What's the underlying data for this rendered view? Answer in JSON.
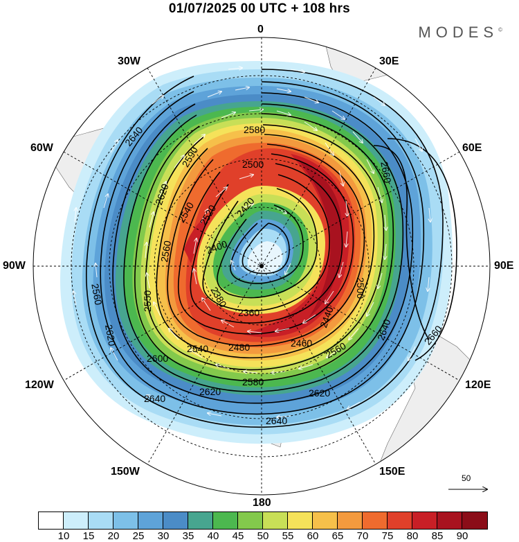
{
  "title": "01/07/2025  00 UTC  + 108 hrs",
  "brand": "MODES",
  "brand_mark": "©",
  "lon_labels": {
    "n0": "0",
    "e30": "30E",
    "e60": "60E",
    "e90": "90E",
    "e120": "120E",
    "e150": "150E",
    "s180": "180",
    "w150": "150W",
    "w120": "120W",
    "w90": "90W",
    "w60": "60W",
    "w30": "30W"
  },
  "contour_labels": {
    "c2580_top": "2580",
    "c2560_top": "2560",
    "c2500": "2500",
    "c2420": "2420",
    "c2400": "2400",
    "c2380": "2380",
    "c2360": "2360",
    "c2440": "2440",
    "c2480": "2480",
    "c2460": "2460",
    "c2560_r": "2560",
    "c2580_b": "2580",
    "c2600_b": "2600",
    "c2620_b": "2620",
    "c2620_br": "2620",
    "c2640_b": "2640",
    "c2640_l": "2640",
    "c2640_tl": "2640",
    "c2620_l": "2620",
    "c2620_ul": "2620",
    "c2590": "2590",
    "c2540": "2540",
    "c2520": "2520",
    "c2550": "2550",
    "c2560_l": "2560",
    "c2540_b": "2540",
    "c2500_r": "2500",
    "c2640_r": "2640",
    "c2660_r": "2660",
    "c2660_tr": "2660"
  },
  "wind_reference": {
    "value": "50"
  },
  "colorbar": {
    "colors": [
      "#ffffff",
      "#cdeefb",
      "#a9dcf5",
      "#7dc0e8",
      "#5ea3d9",
      "#4b8cc7",
      "#47a58f",
      "#4cb84f",
      "#83c94c",
      "#c8df57",
      "#f5e25a",
      "#f6c04a",
      "#f39a3e",
      "#ef6b2e",
      "#e0402a",
      "#c81f26",
      "#a8121f",
      "#8b0d18"
    ],
    "labels": [
      "10",
      "15",
      "20",
      "25",
      "30",
      "35",
      "40",
      "45",
      "50",
      "55",
      "60",
      "65",
      "70",
      "75",
      "80",
      "85",
      "90"
    ]
  }
}
